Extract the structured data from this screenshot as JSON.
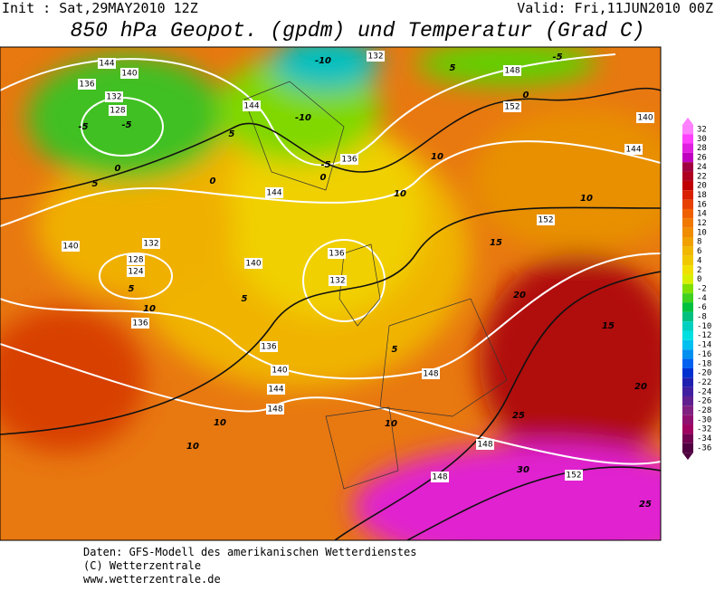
{
  "header": {
    "init": "Init : Sat,29MAY2010 12Z",
    "valid": "Valid: Fri,11JUN2010 00Z",
    "title": "850 hPa Geopot. (gpdm) und Temperatur (Grad C)"
  },
  "colorbar": {
    "ticks": [
      32,
      30,
      28,
      26,
      24,
      22,
      20,
      18,
      16,
      14,
      12,
      10,
      8,
      6,
      4,
      2,
      0,
      -2,
      -4,
      -6,
      -8,
      -10,
      -12,
      -14,
      -16,
      -18,
      -20,
      -22,
      -24,
      -26,
      -28,
      -30,
      -32,
      -34,
      -36
    ],
    "colors": [
      "#ff80ff",
      "#ff40ff",
      "#e020e0",
      "#c000c0",
      "#a00040",
      "#b00020",
      "#c00000",
      "#d82000",
      "#e84000",
      "#f06000",
      "#f07800",
      "#f08c00",
      "#f0a000",
      "#f0b800",
      "#f0c800",
      "#f0e000",
      "#d8f000",
      "#80e000",
      "#40d020",
      "#00c040",
      "#00c080",
      "#00d0c0",
      "#00e0e0",
      "#00c0f0",
      "#0090f0",
      "#0060f0",
      "#0030d0",
      "#2020b0",
      "#4020a0",
      "#602090",
      "#802080",
      "#901070",
      "#a00060",
      "#700050",
      "#500040"
    ]
  },
  "map": {
    "geopotential_labels": [
      144,
      140,
      136,
      132,
      128,
      132,
      148,
      152,
      140,
      144,
      144,
      136,
      144,
      152,
      140,
      132,
      128,
      124,
      136,
      132,
      140,
      136,
      136,
      140,
      144,
      148,
      148,
      148,
      148,
      152
    ],
    "temperature_labels": [
      -5,
      -5,
      0,
      5,
      0,
      5,
      -10,
      -10,
      -5,
      0,
      0,
      -5,
      5,
      10,
      10,
      10,
      15,
      5,
      5,
      10,
      20,
      15,
      5,
      10,
      20,
      25,
      30,
      10,
      10,
      25
    ]
  },
  "footer": {
    "source": "Daten: GFS-Modell des amerikanischen Wetterdienstes",
    "copyright": "(C) Wetterzentrale",
    "url": "www.wetterzentrale.de"
  }
}
